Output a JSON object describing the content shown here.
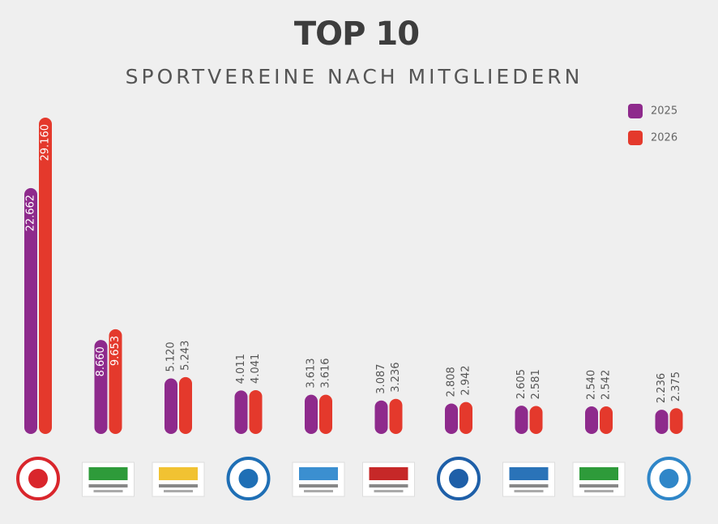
{
  "chart_data": {
    "type": "bar",
    "title": "TOP 10",
    "subtitle": "SPORTVEREINE NACH MITGLIEDERN",
    "categories": [
      null,
      null,
      null,
      null,
      null,
      null,
      null,
      null,
      null,
      null
    ],
    "series": [
      {
        "name": "2025",
        "color": "#8e2a8c",
        "values": [
          22662,
          8660,
          5120,
          4011,
          3613,
          3087,
          2808,
          2605,
          2540,
          2236
        ],
        "value_labels": [
          "22.662",
          "8.660",
          "5.120",
          "4.011",
          "3.613",
          "3.087",
          "2.808",
          "2.605",
          "2.540",
          "2.236"
        ]
      },
      {
        "name": "2026",
        "color": "#e4392c",
        "values": [
          29160,
          9653,
          5243,
          4041,
          3616,
          3236,
          2942,
          2581,
          2542,
          2375
        ],
        "value_labels": [
          "29.160",
          "9.653",
          "5.243",
          "4.041",
          "3.616",
          "3.236",
          "2.942",
          "2.581",
          "2.542",
          "2.375"
        ]
      }
    ],
    "legend": "top-right"
  }
}
